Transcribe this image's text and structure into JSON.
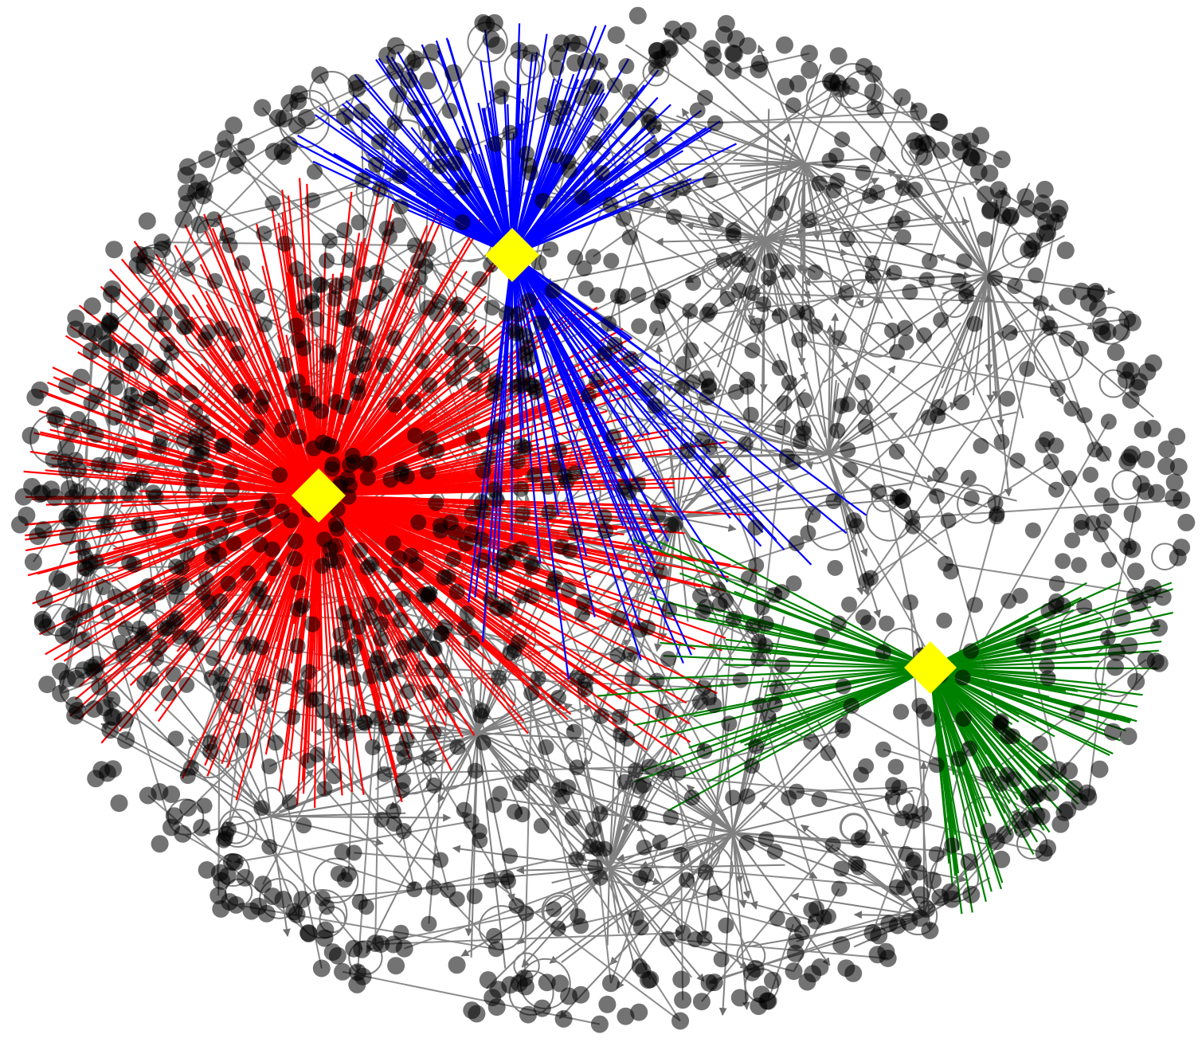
{
  "diagram": {
    "type": "network-graph",
    "directed": true,
    "layout": "elliptical",
    "colors": {
      "background": "#ffffff",
      "edge_default": "#808080",
      "node_fill": "#000000",
      "hub_fill": "#ffff00",
      "hub_edges_red": "#ff0000",
      "hub_edges_blue": "#0000ff",
      "hub_edges_green": "#008000"
    },
    "hubs": [
      {
        "id": "hub-red",
        "shape": "diamond",
        "edge_color": "red",
        "size": "large"
      },
      {
        "id": "hub-blue",
        "shape": "diamond",
        "edge_color": "blue",
        "size": "medium"
      },
      {
        "id": "hub-green",
        "shape": "diamond",
        "edge_color": "green",
        "size": "medium"
      }
    ],
    "node_shape": "circle",
    "node_opacity": 0.55,
    "has_self_loops": true,
    "text_labels": "none"
  }
}
